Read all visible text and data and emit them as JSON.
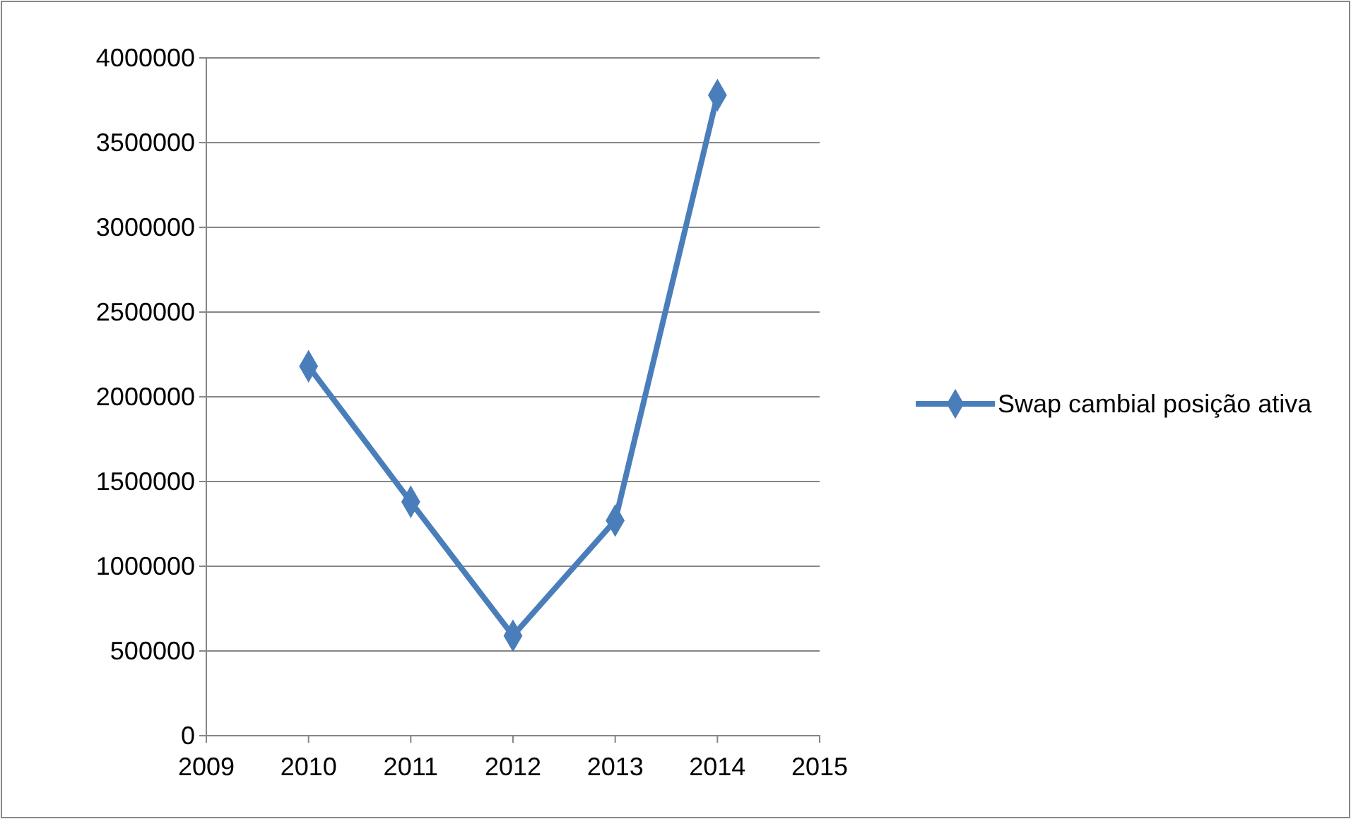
{
  "chart_data": {
    "type": "line",
    "x": [
      2010,
      2011,
      2012,
      2013,
      2014
    ],
    "series": [
      {
        "name": "Swap cambial posição ativa",
        "color": "#4a7ebb",
        "values": [
          2180000,
          1380000,
          590000,
          1270000,
          3780000
        ]
      }
    ],
    "xlim": [
      2009,
      2015
    ],
    "xticks": [
      2009,
      2010,
      2011,
      2012,
      2013,
      2014,
      2015
    ],
    "ylim": [
      0,
      4000000
    ],
    "yticks": [
      0,
      500000,
      1000000,
      1500000,
      2000000,
      2500000,
      3000000,
      3500000,
      4000000
    ],
    "grid": "y",
    "legend": "right",
    "marker": "diamond",
    "line_style": "solid"
  }
}
